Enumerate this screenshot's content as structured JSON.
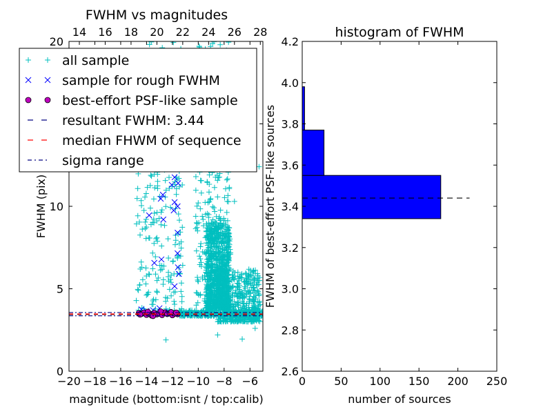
{
  "chart_data": [
    {
      "type": "scatter",
      "title": "FWHM vs magnitudes",
      "xlabel": "magnitude (bottom:isnt / top:calib)",
      "ylabel": "FWHM (pix)",
      "xlim": [
        -20,
        -5
      ],
      "ylim": [
        0,
        20
      ],
      "xticks": [
        -20,
        -18,
        -16,
        -14,
        -12,
        -10,
        -8,
        -6
      ],
      "xtick_labels": [
        "−20",
        "−18",
        "−16",
        "−14",
        "−12",
        "−10",
        "−8",
        "−6"
      ],
      "yticks": [
        0,
        5,
        10,
        15,
        20
      ],
      "ytick_labels": [
        "0",
        "5",
        "10",
        "15",
        "20"
      ],
      "top_xlim": [
        13.2,
        28.2
      ],
      "top_xticks": [
        14,
        16,
        18,
        20,
        22,
        24,
        26,
        28
      ],
      "top_xtick_labels": [
        "14",
        "16",
        "18",
        "20",
        "22",
        "24",
        "26",
        "28"
      ],
      "legend": {
        "placement": "upper-left",
        "entries": [
          {
            "label": "all sample",
            "marker": "+",
            "color": "#00bfbf"
          },
          {
            "label": "sample for rough FWHM",
            "marker": "x",
            "color": "#0000ff"
          },
          {
            "label": "best-effort PSF-like sample",
            "marker": "o",
            "color": "#bf00bf"
          },
          {
            "label": "resultant FWHM: 3.44",
            "line": "dashed",
            "color": "#000080"
          },
          {
            "label": "median FHWM of sequence",
            "line": "dashed",
            "color": "#ff0000"
          },
          {
            "label": "sigma range",
            "line": "dashdot",
            "color": "#000080"
          }
        ]
      },
      "hlines": {
        "resultant_fwhm": 3.44,
        "median_fwhm": 3.47,
        "sigma_range": [
          3.36,
          3.56
        ]
      },
      "series": [
        {
          "name": "all sample",
          "clusters": [
            {
              "x_range": [
                -14.8,
                -11.2
              ],
              "y_range": [
                3.5,
                20
              ],
              "n": 260,
              "seed": 1
            },
            {
              "x_range": [
                -10.2,
                -7.5
              ],
              "y_range": [
                4,
                20
              ],
              "n": 320,
              "seed": 2
            },
            {
              "x_range": [
                -9.4,
                -7.6
              ],
              "y_range": [
                3.8,
                9
              ],
              "n": 900,
              "seed": 3
            },
            {
              "x_range": [
                -8.5,
                -5.2
              ],
              "y_range": [
                3.0,
                6.2
              ],
              "n": 500,
              "seed": 4
            },
            {
              "x_range": [
                -11.5,
                -5.0
              ],
              "y_range": [
                3.35,
                3.7
              ],
              "n": 400,
              "seed": 5
            }
          ],
          "points": [
            [
              -12.5,
              1.9
            ],
            [
              -8.5,
              2.2
            ],
            [
              -6.6,
              1.95
            ],
            [
              -5.6,
              2.6
            ],
            [
              -5.3,
              12.4
            ],
            [
              -7.2,
              10.3
            ],
            [
              -8.3,
              19.8
            ]
          ]
        },
        {
          "name": "sample for rough FWHM",
          "points": [
            [
              -11.83,
              11.76
            ],
            [
              -12.05,
              11.3
            ],
            [
              -11.56,
              11.4
            ],
            [
              -12.74,
              10.7
            ],
            [
              -12.9,
              10.46
            ],
            [
              -11.83,
              10.25
            ],
            [
              -11.6,
              10.0
            ],
            [
              -11.9,
              9.75
            ],
            [
              -13.8,
              9.45
            ],
            [
              -12.7,
              9.2
            ],
            [
              -11.6,
              8.4
            ],
            [
              -11.6,
              7.15
            ],
            [
              -12.85,
              6.78
            ],
            [
              -13.4,
              6.57
            ],
            [
              -11.57,
              6.3
            ],
            [
              -11.5,
              5.9
            ],
            [
              -11.83,
              5.15
            ],
            [
              -14.4,
              3.75
            ],
            [
              -13.5,
              3.7
            ],
            [
              -12.3,
              3.6
            ],
            [
              -14.0,
              3.65
            ],
            [
              -13.0,
              3.82
            ]
          ]
        },
        {
          "name": "best-effort PSF-like sample",
          "points": [
            [
              -14.6,
              3.52
            ],
            [
              -14.4,
              3.48
            ],
            [
              -14.2,
              3.55
            ],
            [
              -14.0,
              3.42
            ],
            [
              -13.8,
              3.5
            ],
            [
              -13.6,
              3.38
            ],
            [
              -13.4,
              3.53
            ],
            [
              -13.2,
              3.45
            ],
            [
              -13.0,
              3.5
            ],
            [
              -12.8,
              3.41
            ],
            [
              -12.6,
              3.56
            ],
            [
              -12.4,
              3.47
            ],
            [
              -12.2,
              3.52
            ],
            [
              -12.0,
              3.4
            ],
            [
              -11.8,
              3.5
            ],
            [
              -11.6,
              3.46
            ],
            [
              -13.9,
              3.6
            ],
            [
              -12.9,
              3.62
            ],
            [
              -12.1,
              3.58
            ],
            [
              -14.5,
              3.44
            ],
            [
              -11.7,
              3.55
            ],
            [
              -13.5,
              3.35
            ]
          ]
        }
      ]
    },
    {
      "type": "bar",
      "orientation": "horizontal",
      "title": "histogram of FWHM",
      "xlabel": "number of sources",
      "ylabel": "FWHM of best-effort PSF-like sources",
      "xlim": [
        0,
        250
      ],
      "ylim": [
        2.6,
        4.2
      ],
      "xticks": [
        0,
        50,
        100,
        150,
        200,
        250
      ],
      "xtick_labels": [
        "0",
        "50",
        "100",
        "150",
        "200",
        "250"
      ],
      "yticks": [
        2.6,
        2.8,
        3.0,
        3.2,
        3.4,
        3.6,
        3.8,
        4.0,
        4.2
      ],
      "ytick_labels": [
        "2.6",
        "2.8",
        "3.0",
        "3.2",
        "3.4",
        "3.6",
        "3.8",
        "4.0",
        "4.2"
      ],
      "bins": [
        [
          3.34,
          3.55
        ],
        [
          3.55,
          3.77
        ],
        [
          3.77,
          3.98
        ]
      ],
      "values": [
        178,
        28,
        3
      ],
      "color": "#0000ff",
      "hline": {
        "y": 3.44,
        "x_range": [
          0,
          215
        ],
        "style": "dashed"
      }
    }
  ]
}
